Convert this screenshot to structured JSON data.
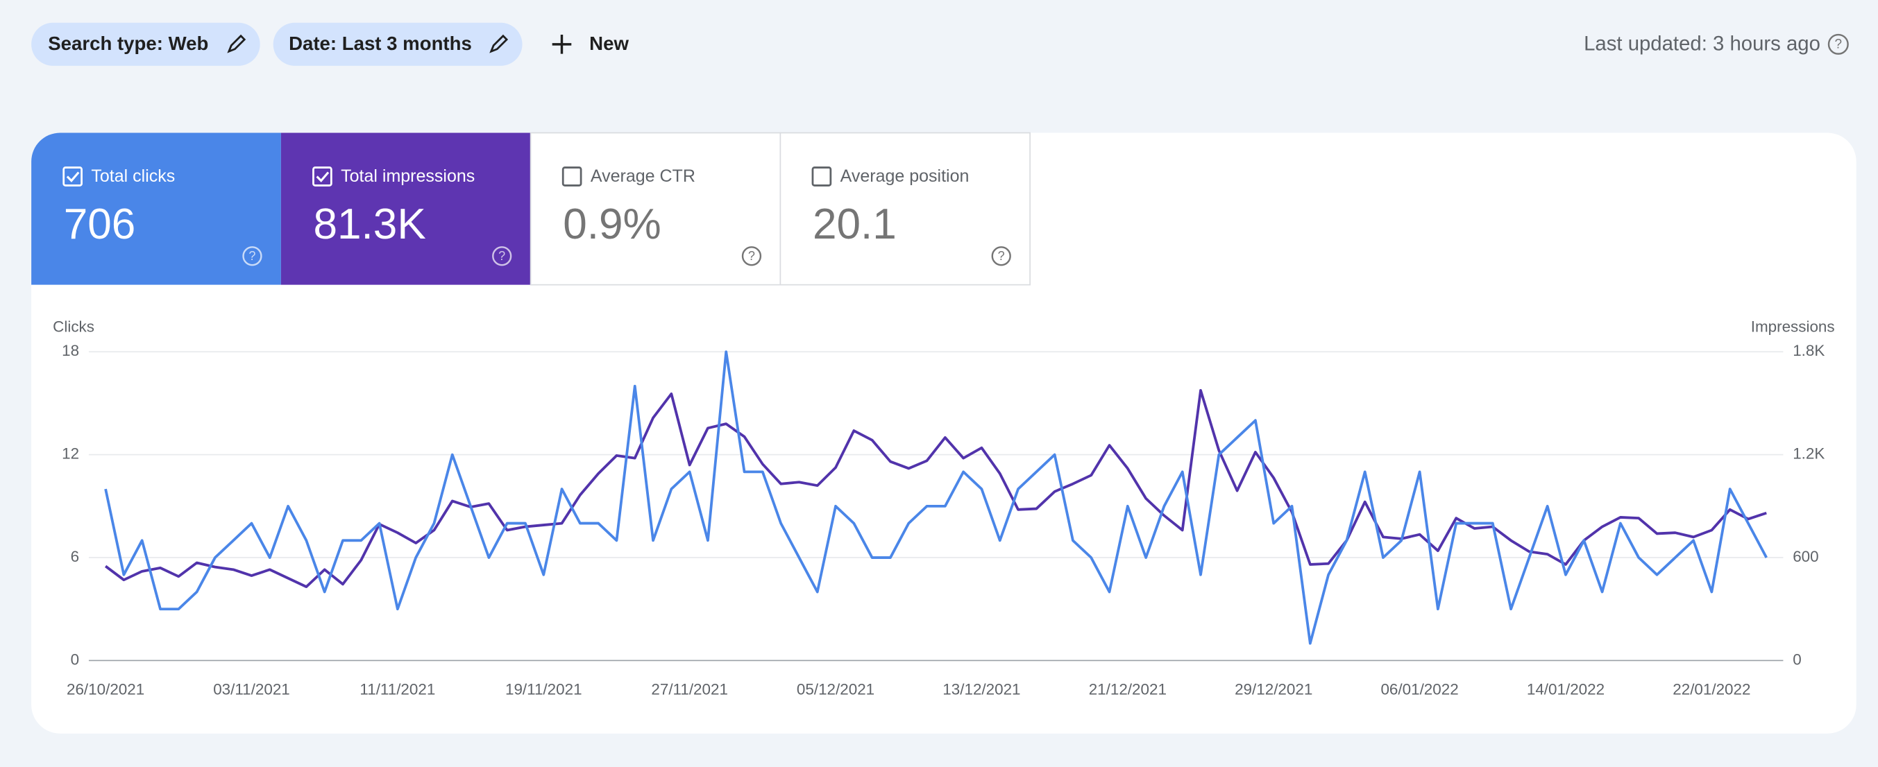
{
  "toolbar": {
    "filters": [
      "Search type: Web",
      "Date: Last 3 months"
    ],
    "new_button": "New",
    "last_updated": "Last updated: 3 hours ago"
  },
  "metrics": [
    {
      "label": "Total clicks",
      "value": "706",
      "checked": true,
      "color": "#4a86e8"
    },
    {
      "label": "Total impressions",
      "value": "81.3K",
      "checked": true,
      "color": "#5e35b1"
    },
    {
      "label": "Average CTR",
      "value": "0.9%",
      "checked": false,
      "color": "#00897b"
    },
    {
      "label": "Average position",
      "value": "20.1",
      "checked": false,
      "color": "#e8710a"
    }
  ],
  "chart_data": {
    "type": "line",
    "y_label": "Clicks",
    "y2_label": "Impressions",
    "x": [
      "26/10/2021",
      "27/10/2021",
      "28/10/2021",
      "29/10/2021",
      "30/10/2021",
      "31/10/2021",
      "01/11/2021",
      "02/11/2021",
      "03/11/2021",
      "04/11/2021",
      "05/11/2021",
      "06/11/2021",
      "07/11/2021",
      "08/11/2021",
      "09/11/2021",
      "10/11/2021",
      "11/11/2021",
      "12/11/2021",
      "13/11/2021",
      "14/11/2021",
      "15/11/2021",
      "16/11/2021",
      "17/11/2021",
      "18/11/2021",
      "19/11/2021",
      "20/11/2021",
      "21/11/2021",
      "22/11/2021",
      "23/11/2021",
      "24/11/2021",
      "25/11/2021",
      "26/11/2021",
      "27/11/2021",
      "28/11/2021",
      "29/11/2021",
      "30/11/2021",
      "01/12/2021",
      "02/12/2021",
      "03/12/2021",
      "04/12/2021",
      "05/12/2021",
      "06/12/2021",
      "07/12/2021",
      "08/12/2021",
      "09/12/2021",
      "10/12/2021",
      "11/12/2021",
      "12/12/2021",
      "13/12/2021",
      "14/12/2021",
      "15/12/2021",
      "16/12/2021",
      "17/12/2021",
      "18/12/2021",
      "19/12/2021",
      "20/12/2021",
      "21/12/2021",
      "22/12/2021",
      "23/12/2021",
      "24/12/2021",
      "25/12/2021",
      "26/12/2021",
      "27/12/2021",
      "28/12/2021",
      "29/12/2021",
      "30/12/2021",
      "31/12/2021",
      "01/01/2022",
      "02/01/2022",
      "03/01/2022",
      "04/01/2022",
      "05/01/2022",
      "06/01/2022",
      "07/01/2022",
      "08/01/2022",
      "09/01/2022",
      "10/01/2022",
      "11/01/2022",
      "12/01/2022",
      "13/01/2022",
      "14/01/2022",
      "15/01/2022",
      "16/01/2022",
      "17/01/2022",
      "18/01/2022",
      "19/01/2022",
      "20/01/2022",
      "21/01/2022",
      "22/01/2022",
      "23/01/2022",
      "24/01/2022",
      "25/01/2022"
    ],
    "xticks": [
      "26/10/2021",
      "03/11/2021",
      "11/11/2021",
      "19/11/2021",
      "27/11/2021",
      "05/12/2021",
      "13/12/2021",
      "21/12/2021",
      "29/12/2021",
      "06/01/2022",
      "14/01/2022",
      "22/01/2022"
    ],
    "ylim": [
      0,
      18
    ],
    "yticks": [
      0,
      6,
      12,
      18
    ],
    "y2lim": [
      0,
      1800
    ],
    "y2ticks": [
      0,
      600,
      {
        "value": 1200,
        "label": "1.2K"
      },
      {
        "value": 1800,
        "label": "1.8K"
      }
    ],
    "grid": true,
    "series": [
      {
        "color": "#5133ab",
        "axis": "y2",
        "values": [
          550,
          470,
          520,
          540,
          490,
          570,
          545,
          530,
          495,
          530,
          480,
          430,
          530,
          445,
          585,
          795,
          745,
          685,
          760,
          930,
          895,
          915,
          760,
          780,
          790,
          800,
          965,
          1090,
          1195,
          1180,
          1415,
          1555,
          1140,
          1355,
          1380,
          1305,
          1145,
          1030,
          1040,
          1020,
          1125,
          1340,
          1285,
          1160,
          1120,
          1165,
          1300,
          1180,
          1240,
          1090,
          880,
          885,
          985,
          1030,
          1080,
          1255,
          1120,
          945,
          845,
          760,
          1575,
          1225,
          990,
          1215,
          1065,
          865,
          560,
          565,
          700,
          925,
          720,
          710,
          735,
          640,
          830,
          770,
          780,
          700,
          635,
          620,
          560,
          700,
          780,
          835,
          830,
          740,
          745,
          720,
          760,
          880,
          825,
          860
        ]
      },
      {
        "color": "#4a86e8",
        "values": [
          10,
          5,
          7,
          3,
          3,
          4,
          6,
          7,
          8,
          6,
          9,
          7,
          4,
          7,
          7,
          8,
          3,
          6,
          8,
          12,
          9,
          6,
          8,
          8,
          5,
          10,
          8,
          8,
          7,
          16,
          7,
          10,
          11,
          7,
          18,
          11,
          11,
          8,
          6,
          4,
          9,
          8,
          6,
          6,
          8,
          9,
          9,
          11,
          10,
          7,
          10,
          11,
          12,
          7,
          6,
          4,
          9,
          6,
          9,
          11,
          5,
          12,
          13,
          14,
          8,
          9,
          1,
          5,
          7,
          11,
          6,
          7,
          11,
          3,
          8,
          8,
          8,
          3,
          6,
          9,
          5,
          7,
          4,
          8,
          6,
          5,
          6,
          7,
          4,
          10,
          8,
          6
        ]
      }
    ]
  }
}
